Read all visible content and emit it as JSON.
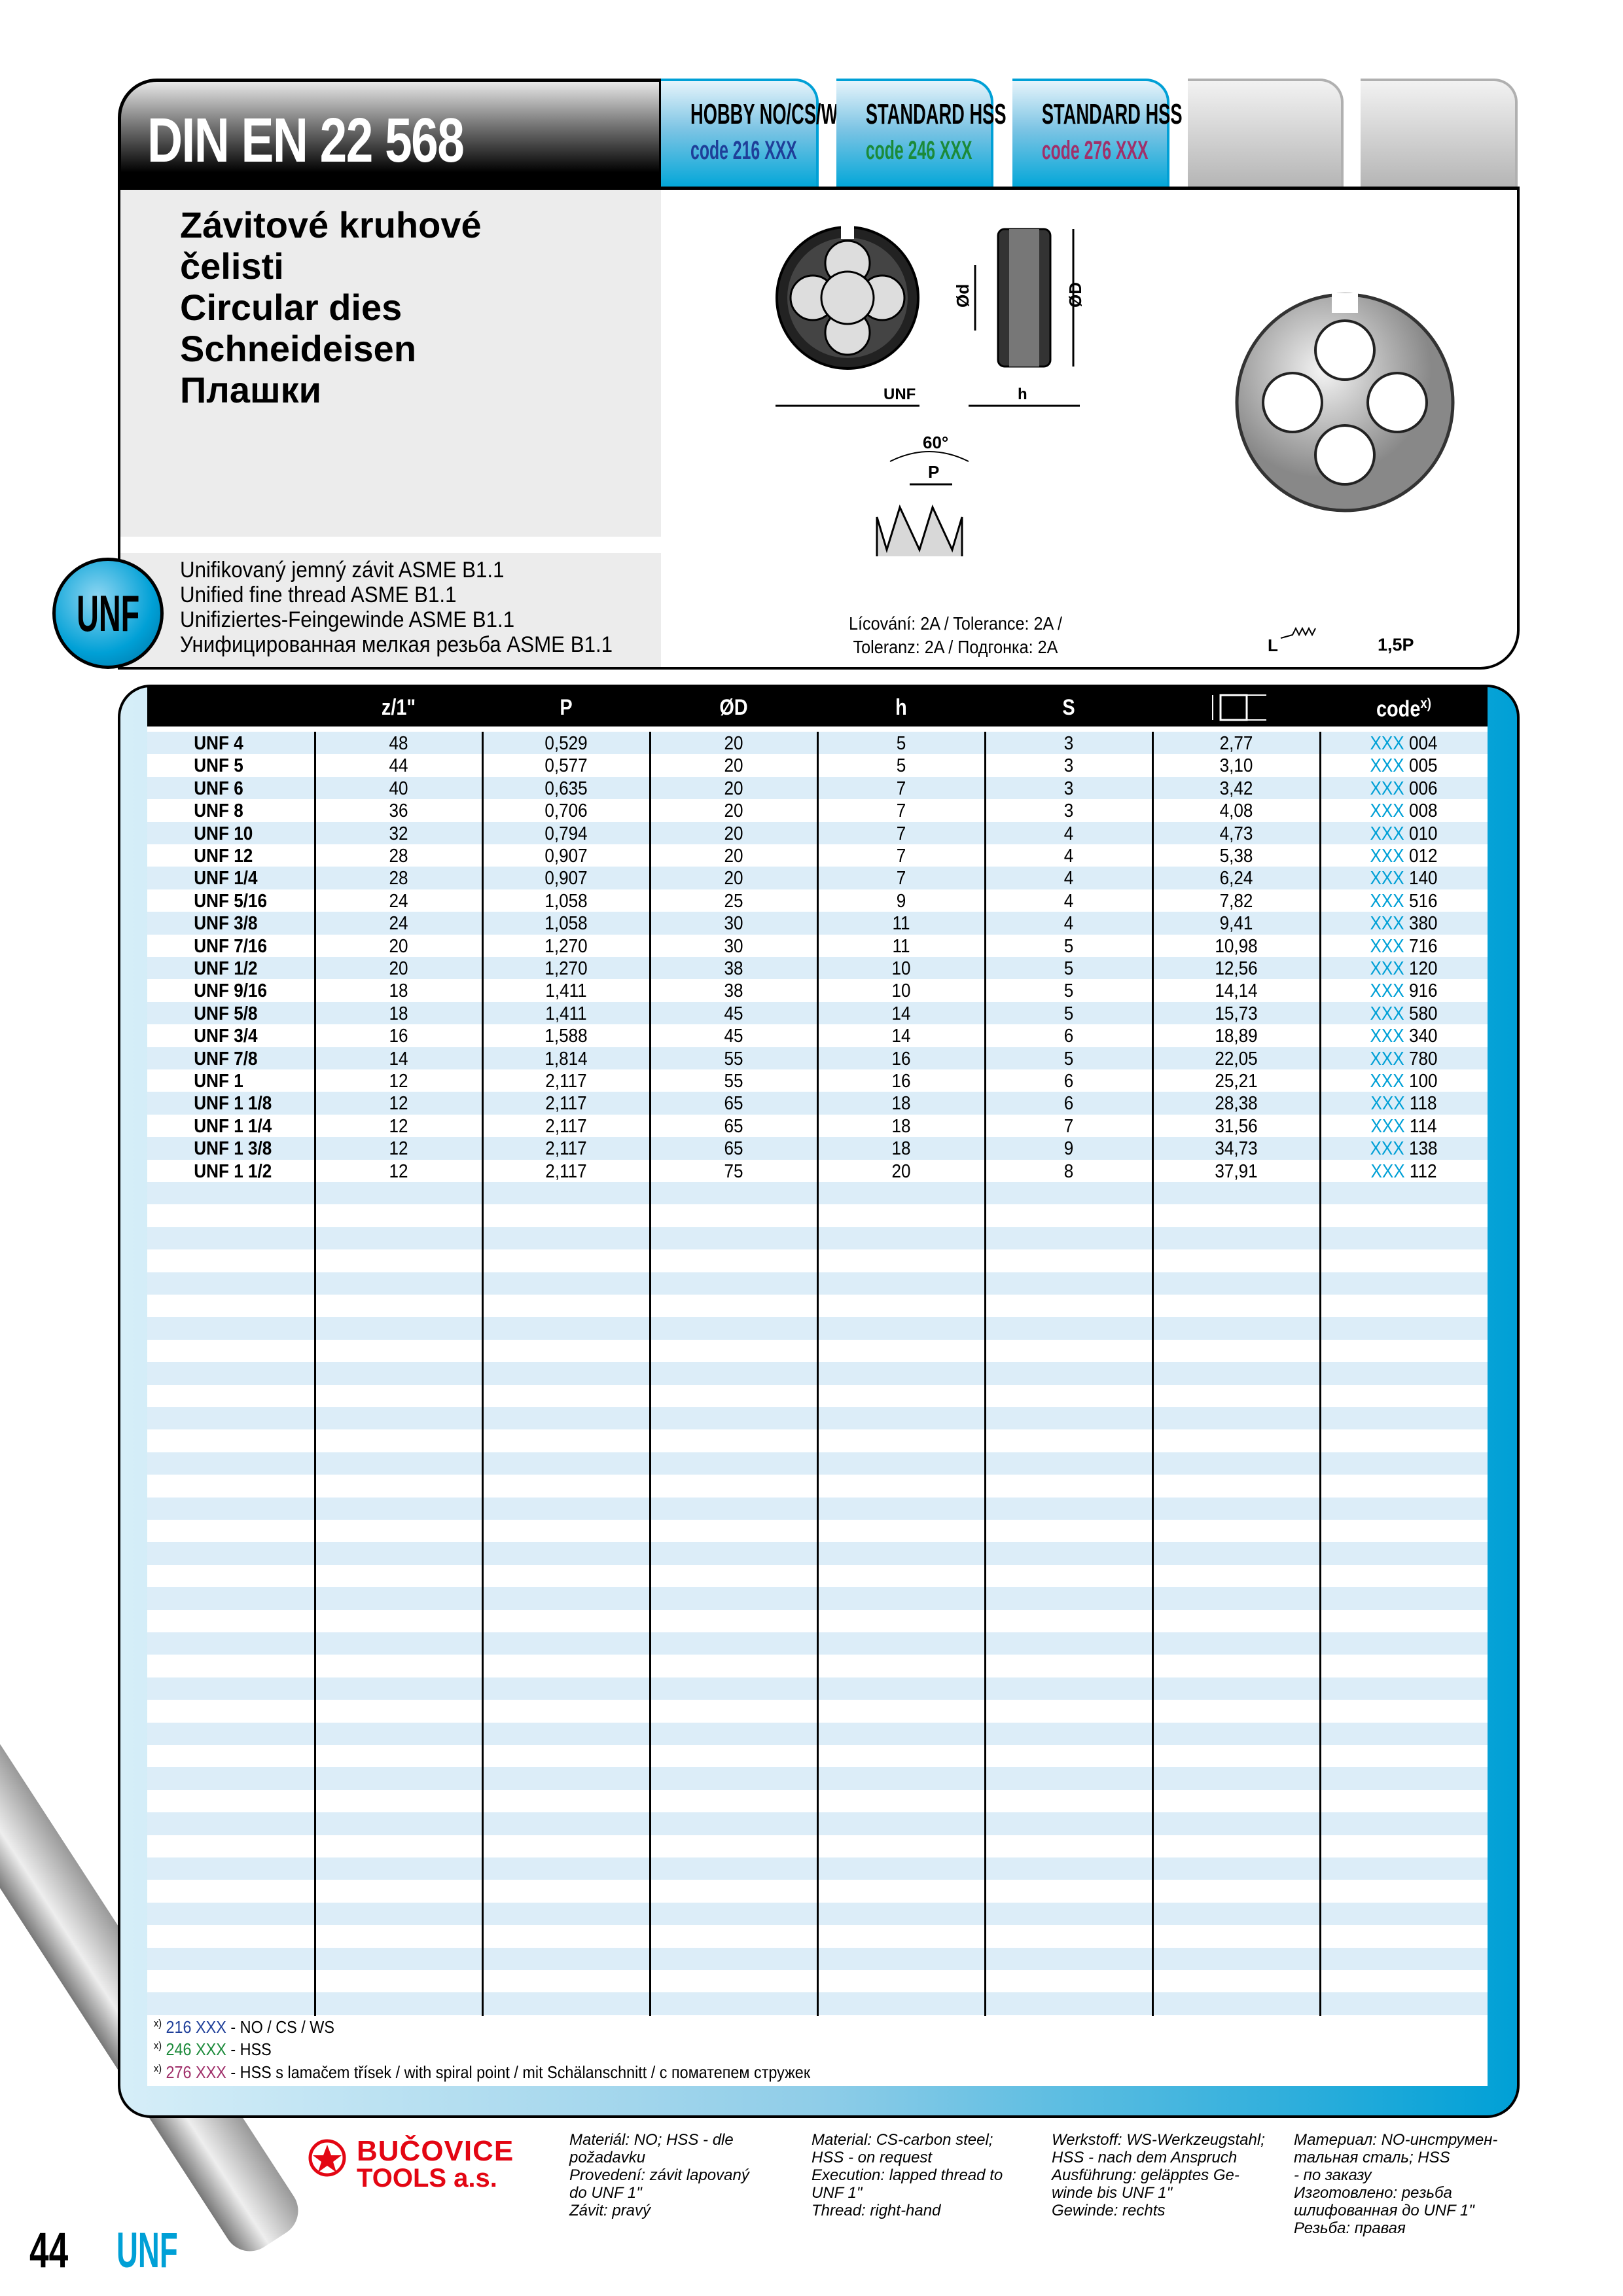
{
  "header": {
    "title": "DIN EN 22 568",
    "tabs": [
      {
        "label": "HOBBY NO/CS/WS",
        "code_prefix": "code",
        "code": "216 XXX",
        "color": "#1f3f99"
      },
      {
        "label": "STANDARD HSS",
        "code_prefix": "code",
        "code": "246 XXX",
        "color": "#1b8a3a"
      },
      {
        "label": "STANDARD HSS",
        "code_prefix": "code",
        "code": "276 XXX",
        "color": "#a0306a"
      }
    ]
  },
  "product": {
    "names": [
      "Závitové kruhové",
      "čelisti",
      "Circular dies",
      "Schneideisen",
      "Плашки"
    ],
    "thread_desc": [
      "Unifikovaný jemný závit ASME B1.1",
      "Unified fine thread ASME B1.1",
      "Unifiziertes-Feingewinde ASME B1.1",
      "Унифицированная мелкая резьба ASME B1.1"
    ],
    "badge": "UNF",
    "tolerance": [
      "Lícování: 2A / Tolerance: 2A /",
      "Toleranz: 2A / Подгонка: 2A"
    ],
    "lead": "1,5P",
    "diagram_labels": {
      "unf": "UNF",
      "h": "h",
      "d": "Ød",
      "D": "ØD",
      "angle": "60°",
      "p": "P",
      "lead_l": "L"
    }
  },
  "table": {
    "columns": [
      "",
      "z/1\"",
      "P",
      "ØD",
      "h",
      "S",
      "",
      "code"
    ],
    "code_sup": "x)",
    "rows": [
      [
        "UNF 4",
        "48",
        "0,529",
        "20",
        "5",
        "3",
        "2,77",
        "004"
      ],
      [
        "UNF 5",
        "44",
        "0,577",
        "20",
        "5",
        "3",
        "3,10",
        "005"
      ],
      [
        "UNF 6",
        "40",
        "0,635",
        "20",
        "7",
        "3",
        "3,42",
        "006"
      ],
      [
        "UNF 8",
        "36",
        "0,706",
        "20",
        "7",
        "3",
        "4,08",
        "008"
      ],
      [
        "UNF 10",
        "32",
        "0,794",
        "20",
        "7",
        "4",
        "4,73",
        "010"
      ],
      [
        "UNF 12",
        "28",
        "0,907",
        "20",
        "7",
        "4",
        "5,38",
        "012"
      ],
      [
        "UNF 1/4",
        "28",
        "0,907",
        "20",
        "7",
        "4",
        "6,24",
        "140"
      ],
      [
        "UNF 5/16",
        "24",
        "1,058",
        "25",
        "9",
        "4",
        "7,82",
        "516"
      ],
      [
        "UNF 3/8",
        "24",
        "1,058",
        "30",
        "11",
        "4",
        "9,41",
        "380"
      ],
      [
        "UNF 7/16",
        "20",
        "1,270",
        "30",
        "11",
        "5",
        "10,98",
        "716"
      ],
      [
        "UNF 1/2",
        "20",
        "1,270",
        "38",
        "10",
        "5",
        "12,56",
        "120"
      ],
      [
        "UNF 9/16",
        "18",
        "1,411",
        "38",
        "10",
        "5",
        "14,14",
        "916"
      ],
      [
        "UNF 5/8",
        "18",
        "1,411",
        "45",
        "14",
        "5",
        "15,73",
        "580"
      ],
      [
        "UNF 3/4",
        "16",
        "1,588",
        "45",
        "14",
        "6",
        "18,89",
        "340"
      ],
      [
        "UNF 7/8",
        "14",
        "1,814",
        "55",
        "16",
        "5",
        "22,05",
        "780"
      ],
      [
        "UNF 1",
        "12",
        "2,117",
        "55",
        "16",
        "6",
        "25,21",
        "100"
      ],
      [
        "UNF 1 1/8",
        "12",
        "2,117",
        "65",
        "18",
        "6",
        "28,38",
        "118"
      ],
      [
        "UNF 1 1/4",
        "12",
        "2,117",
        "65",
        "18",
        "7",
        "31,56",
        "114"
      ],
      [
        "UNF 1 3/8",
        "12",
        "2,117",
        "65",
        "18",
        "9",
        "34,73",
        "138"
      ],
      [
        "UNF 1 1/2",
        "12",
        "2,117",
        "75",
        "20",
        "8",
        "37,91",
        "112"
      ]
    ],
    "code_prefix": "XXX"
  },
  "footnotes": [
    {
      "mark": "x)",
      "code": "216 XXX",
      "color": "#1f3f99",
      "text": " - NO / CS / WS"
    },
    {
      "mark": "x)",
      "code": "246 XXX",
      "color": "#1b8a3a",
      "text": " - HSS"
    },
    {
      "mark": "x)",
      "code": "276 XXX",
      "color": "#a0306a",
      "text": " - HSS s lamačem třísek / with spiral point / mit Schälanschnitt / с поматепем стружек"
    }
  ],
  "footer": {
    "brand": "BUČOVICE",
    "brand2": "TOOLS a.s.",
    "columns": [
      [
        "Materiál: NO; HSS - dle",
        "požadavku",
        "Provedení: závit lapovaný",
        "do UNF 1\"",
        "Závit: pravý"
      ],
      [
        "Material: CS-carbon steel;",
        "HSS - on request",
        "Execution: lapped thread to",
        "UNF 1\"",
        "Thread: right-hand"
      ],
      [
        "Werkstoff: WS-Werkzeugstahl;",
        "HSS - nach dem Anspruch",
        "Ausführung: geläpptes Ge-",
        "winde bis UNF 1\"",
        "Gewinde: rechts"
      ],
      [
        "Материал: NO-инструмен-",
        "тальная сталь; HSS",
        "- по заказу",
        "Изготовлено: резьба",
        "шлифованная до UNF 1\"",
        "Резьба: правая"
      ]
    ],
    "page_number": "44",
    "page_section": "UNF"
  },
  "colors": {
    "accent": "#00a0d6",
    "code_xxx": "#00a0d6",
    "brand_red": "#e30613"
  }
}
